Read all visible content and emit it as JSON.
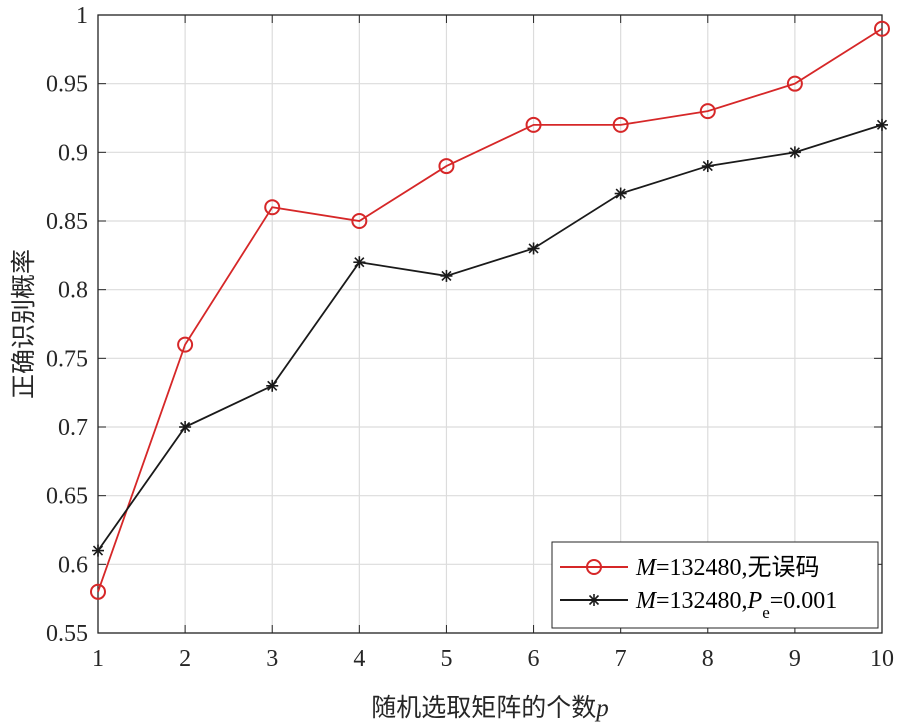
{
  "chart_data": {
    "type": "line",
    "xlabel": "随机选取矩阵的个数",
    "xlabel_var": "p",
    "ylabel": "正确识别概率",
    "x": [
      1,
      2,
      3,
      4,
      5,
      6,
      7,
      8,
      9,
      10
    ],
    "xlim": [
      1,
      10
    ],
    "ylim": [
      0.55,
      1
    ],
    "xticks": [
      1,
      2,
      3,
      4,
      5,
      6,
      7,
      8,
      9,
      10
    ],
    "yticks": [
      0.55,
      0.6,
      0.65,
      0.7,
      0.75,
      0.8,
      0.85,
      0.9,
      0.95,
      1
    ],
    "ytick_labels": [
      "0.55",
      "0.6",
      "0.65",
      "0.7",
      "0.75",
      "0.8",
      "0.85",
      "0.9",
      "0.95",
      "1"
    ],
    "grid": true,
    "legend_position": "bottom-right",
    "series": [
      {
        "name_var": "M",
        "name_rest": "=132480,无误码",
        "values": [
          0.58,
          0.76,
          0.86,
          0.85,
          0.89,
          0.92,
          0.92,
          0.93,
          0.95,
          0.99
        ],
        "color": "#d62728",
        "marker": "circle"
      },
      {
        "name_var": "M",
        "name_mid": "=132480,",
        "name_var2": "P",
        "name_sub": "e",
        "name_rest": "=0.001",
        "values": [
          0.61,
          0.7,
          0.73,
          0.82,
          0.81,
          0.83,
          0.87,
          0.89,
          0.9,
          0.92
        ],
        "color": "#1a1a1a",
        "marker": "star"
      }
    ]
  }
}
